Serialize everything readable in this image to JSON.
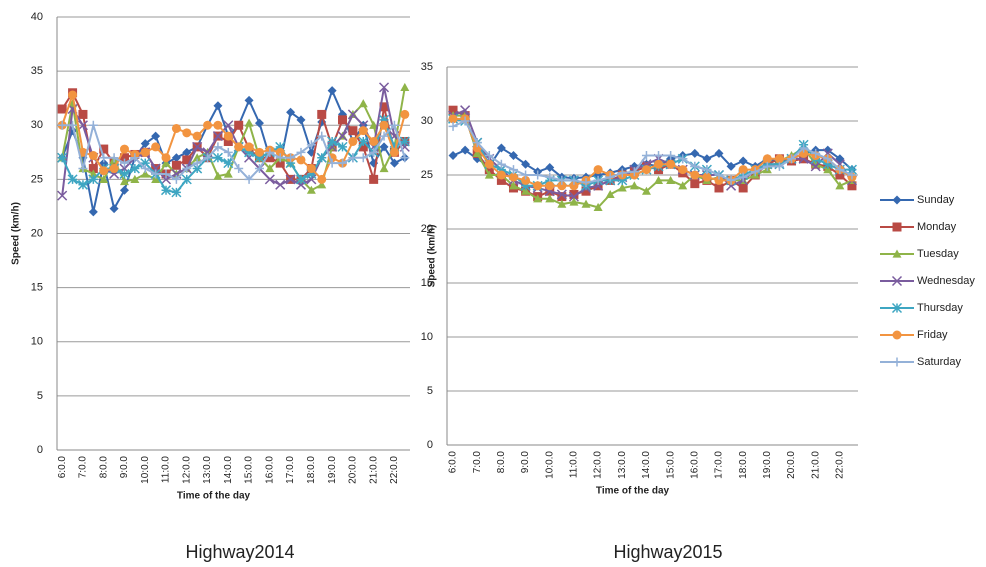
{
  "chart_data": [
    {
      "type": "line",
      "caption": "Highway2014",
      "x_label": "Time of the day",
      "y_label": "Speed (km/h)",
      "categories": [
        "6:0.0",
        null,
        "7:0.0",
        null,
        "8:0.0",
        null,
        "9:0.0",
        null,
        "10:0.0",
        null,
        "11:0.0",
        null,
        "12:0.0",
        null,
        "13:0.0",
        null,
        "14:0.0",
        null,
        "15:0.0",
        null,
        "16:0.0",
        null,
        "17:0.0",
        null,
        "18:0.0",
        null,
        "19:0.0",
        null,
        "20:0.0",
        null,
        "21:0.0",
        null,
        "22:0.0",
        null
      ],
      "ylim": [
        0,
        40
      ],
      "yticks": [
        0,
        5,
        10,
        15,
        20,
        25,
        30,
        35,
        40
      ],
      "grid": true,
      "legend": false,
      "series": [
        {
          "color": "#3568b0",
          "marker": "diamond",
          "values": [
            27,
            29.5,
            27,
            22,
            26.5,
            22.3,
            24,
            27,
            28.3,
            29,
            26.5,
            27,
            27.5,
            28,
            30,
            31.8,
            29,
            30,
            32.3,
            30.2,
            27,
            26.5,
            31.2,
            30.5,
            27.5,
            30.3,
            33.2,
            31,
            28.5,
            30,
            26.5,
            28,
            26.5,
            27
          ]
        },
        {
          "color": "#b94a44",
          "marker": "square",
          "values": [
            31.5,
            33,
            31,
            26,
            27.8,
            26.5,
            27,
            27.3,
            27.5,
            26,
            25.5,
            26.3,
            26.8,
            28,
            27,
            29,
            28.5,
            30,
            27.8,
            27,
            27,
            26.5,
            25,
            25,
            26,
            31,
            28,
            30.5,
            29.5,
            28,
            25,
            31.7,
            27.5,
            28.5
          ]
        },
        {
          "color": "#8fb449",
          "marker": "triangle",
          "values": [
            27,
            32,
            26,
            25.5,
            25,
            26.8,
            24.8,
            25,
            25.5,
            25,
            26.5,
            25.5,
            26,
            27,
            27.5,
            25.3,
            25.5,
            28,
            30.2,
            27,
            26,
            27,
            26.5,
            25,
            24,
            24.5,
            28,
            29,
            31,
            32,
            30,
            26,
            28,
            33.5
          ]
        },
        {
          "color": "#7a5c9e",
          "marker": "x",
          "values": [
            23.5,
            31.5,
            30,
            27,
            26,
            25.5,
            26,
            27,
            27.5,
            26,
            25,
            25.5,
            26,
            28,
            27.5,
            29,
            30,
            28,
            27,
            26,
            25,
            24.5,
            25,
            24.5,
            25,
            27,
            28,
            29,
            31,
            30,
            28,
            33.5,
            29,
            28
          ]
        },
        {
          "color": "#3ea6c2",
          "marker": "star",
          "values": [
            27,
            25,
            24.5,
            25,
            26,
            26,
            25.5,
            26,
            26.5,
            25.5,
            24,
            23.8,
            25,
            26,
            27,
            27,
            26.5,
            28,
            27.5,
            27,
            27.5,
            28,
            26.5,
            25,
            25.5,
            27,
            28.5,
            28,
            27,
            28.5,
            27.5,
            30.5,
            28,
            28.5
          ]
        },
        {
          "color": "#f29440",
          "marker": "circle",
          "values": [
            30,
            32.8,
            27.5,
            27.2,
            25.8,
            26,
            27.8,
            27.3,
            27.5,
            28,
            27,
            29.7,
            29.3,
            29,
            30,
            30,
            29,
            28,
            28,
            27.5,
            27.7,
            27.5,
            27,
            26.8,
            26,
            25,
            27,
            26.5,
            28.5,
            29.5,
            28.5,
            30,
            27.5,
            31
          ]
        },
        {
          "color": "#94b1d8",
          "marker": "plus",
          "values": [
            30,
            30,
            26,
            30,
            27,
            27,
            26.5,
            27,
            26,
            25.5,
            25.5,
            25,
            26,
            26.5,
            27,
            28,
            27.5,
            26,
            25,
            26,
            27.5,
            27,
            27,
            27.5,
            28.2,
            29,
            26.5,
            26.5,
            27,
            27,
            27.5,
            29,
            30,
            27
          ]
        }
      ]
    },
    {
      "type": "line",
      "caption": "Highway2015",
      "x_label": "Time of the day",
      "y_label": "Speed (km/h)",
      "categories": [
        "6:0.0",
        null,
        "7:0.0",
        null,
        "8:0.0",
        null,
        "9:0.0",
        null,
        "10:0.0",
        null,
        "11:0.0",
        null,
        "12:0.0",
        null,
        "13:0.0",
        null,
        "14:0.0",
        null,
        "15:0.0",
        null,
        "16:0.0",
        null,
        "17:0.0",
        null,
        "18:0.0",
        null,
        "19:0.0",
        null,
        "20:0.0",
        null,
        "21:0.0",
        null,
        "22:0.0",
        null
      ],
      "ylim": [
        0,
        35
      ],
      "yticks": [
        0,
        5,
        10,
        15,
        20,
        25,
        30,
        35
      ],
      "grid": true,
      "legend": "right",
      "series": [
        {
          "name": "Sunday",
          "color": "#3568b0",
          "marker": "diamond",
          "values": [
            26.8,
            27.3,
            26.5,
            25.8,
            27.5,
            26.8,
            26,
            25.3,
            25.7,
            24.8,
            24.7,
            24.8,
            25,
            25.2,
            25.5,
            25.8,
            26,
            25.8,
            26.5,
            26.8,
            27,
            26.5,
            27,
            25.8,
            26.3,
            25.8,
            26.5,
            26.2,
            26.5,
            27,
            27.3,
            27.3,
            26.5,
            25.5
          ]
        },
        {
          "name": "Monday",
          "color": "#b94a44",
          "marker": "square",
          "values": [
            31,
            30.5,
            27,
            25.5,
            24.5,
            23.8,
            23.5,
            23,
            23.5,
            23,
            23.2,
            23.5,
            24,
            24.5,
            25,
            25.3,
            25.8,
            25.5,
            26,
            25.2,
            24.2,
            24.5,
            23.8,
            24.5,
            23.8,
            25,
            26,
            26.5,
            26.3,
            26.5,
            26,
            25.8,
            25,
            24
          ]
        },
        {
          "name": "Tuesday",
          "color": "#8fb449",
          "marker": "triangle",
          "values": [
            30.5,
            30.5,
            27,
            25,
            25,
            24,
            23.5,
            22.8,
            22.8,
            22.3,
            22.5,
            22.3,
            22,
            23.2,
            23.8,
            24,
            23.5,
            24.5,
            24.5,
            24,
            25,
            24.5,
            24.8,
            24.5,
            24.5,
            25,
            25.5,
            26.3,
            26.8,
            27.5,
            26,
            25.5,
            24,
            24.5
          ]
        },
        {
          "name": "Wednesday",
          "color": "#7a5c9e",
          "marker": "x",
          "values": [
            30.5,
            31,
            28,
            26.5,
            25.5,
            24.5,
            24,
            23.8,
            23.5,
            23.2,
            23,
            23.8,
            24,
            24.5,
            24.8,
            25.5,
            26,
            26.5,
            26,
            25.5,
            25,
            25,
            25,
            24,
            24.5,
            25.5,
            26,
            26,
            26.5,
            26.5,
            25.8,
            27,
            26,
            24.5
          ]
        },
        {
          "name": "Thursday",
          "color": "#3ea6c2",
          "marker": "star",
          "values": [
            30.2,
            30,
            28,
            26,
            25.5,
            25,
            24,
            24,
            24.5,
            24.5,
            24.5,
            24,
            24.5,
            24.5,
            24.5,
            25,
            25.5,
            25.8,
            26,
            26.5,
            25.8,
            25.5,
            25,
            24.5,
            25,
            25.5,
            26,
            26,
            26.5,
            27.8,
            26.5,
            26,
            25.5,
            25.5
          ]
        },
        {
          "name": "Friday",
          "color": "#f29440",
          "marker": "circle",
          "values": [
            30.2,
            30.2,
            27.5,
            26,
            25,
            24.8,
            24.5,
            24,
            24,
            24,
            24,
            24.5,
            25.5,
            25,
            25,
            25,
            25.5,
            26,
            26,
            25.5,
            25,
            24.8,
            24.5,
            24.5,
            25.5,
            25.5,
            26.5,
            26.5,
            26.5,
            27,
            26.8,
            26.5,
            25.5,
            24.8
          ]
        },
        {
          "name": "Saturday",
          "color": "#94b1d8",
          "marker": "plus",
          "values": [
            29.5,
            30,
            28,
            26.8,
            26,
            25.5,
            25,
            25,
            24.8,
            24.5,
            24.5,
            24.3,
            24.5,
            24.8,
            25.2,
            25.3,
            26.8,
            26.8,
            26.8,
            26.5,
            25.8,
            25.5,
            25,
            24.5,
            24.8,
            25.3,
            25.8,
            25.8,
            26.5,
            27.5,
            27,
            26.5,
            25.5,
            25
          ]
        }
      ]
    }
  ]
}
